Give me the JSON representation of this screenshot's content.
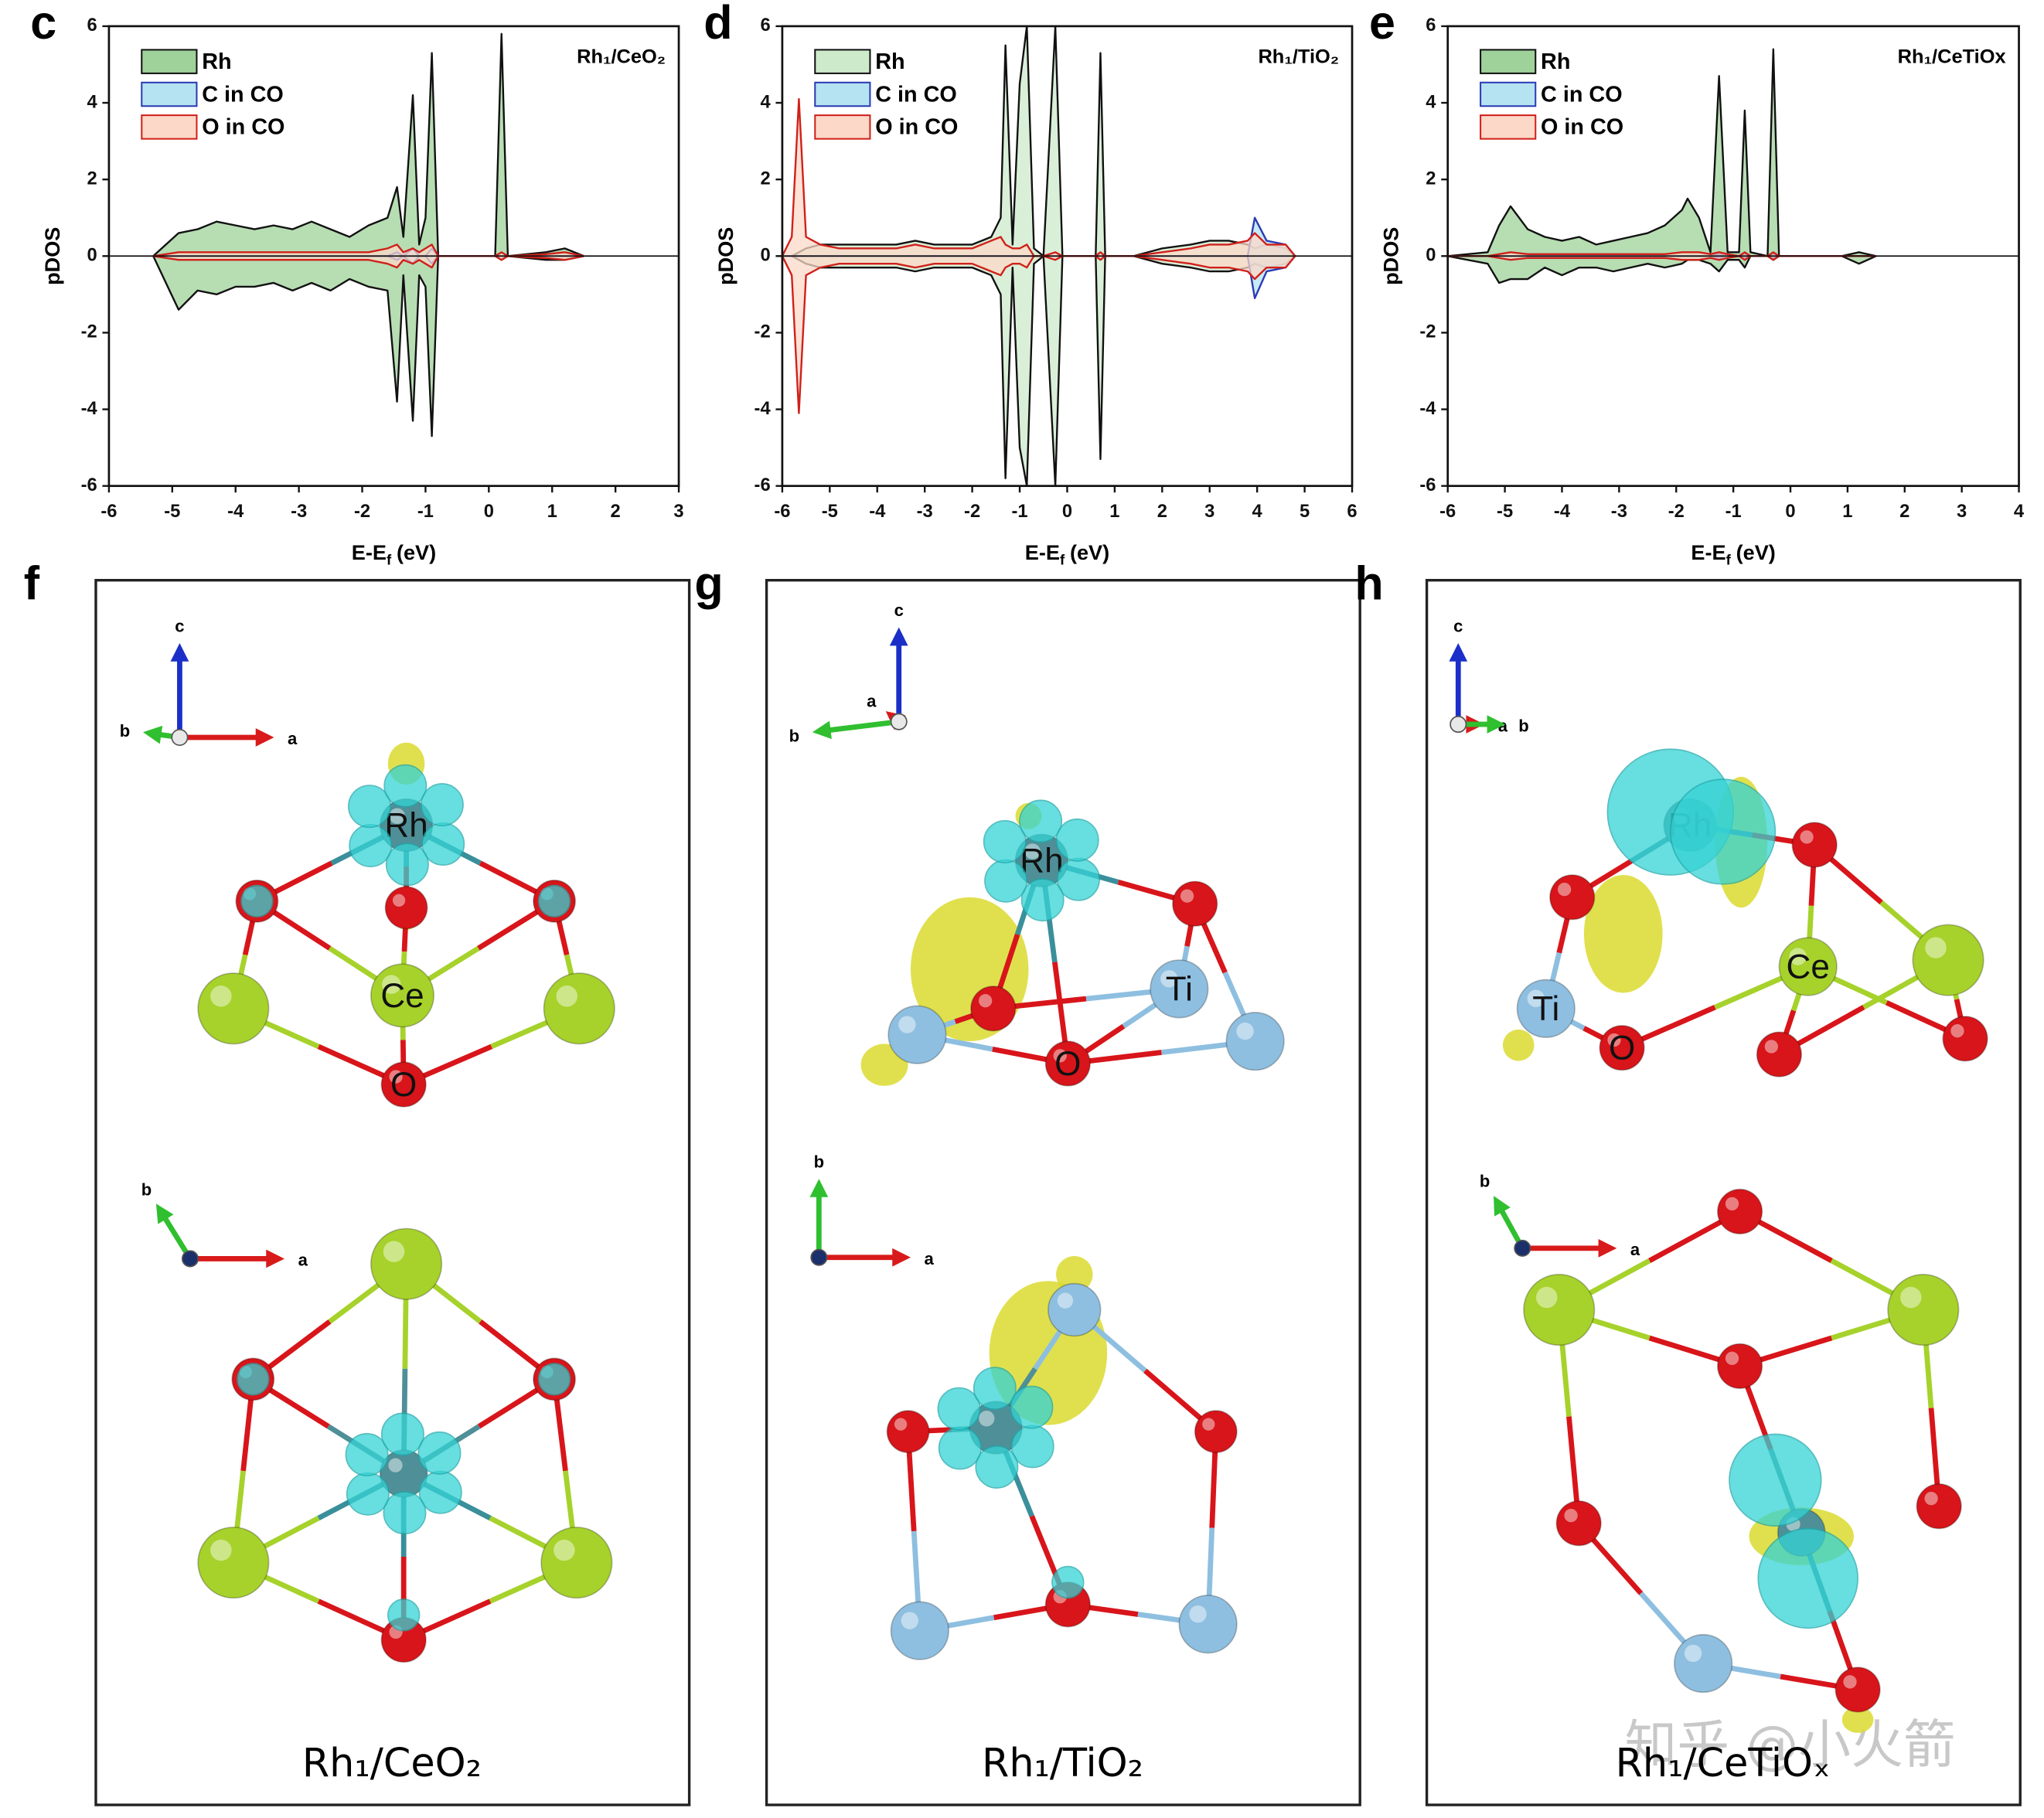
{
  "chart_data": [
    {
      "type": "area",
      "panel_label": "c",
      "title": "Rh₁/CeO₂",
      "y_label": "pDOS",
      "x_label": [
        "E-E",
        "f",
        "(eV)"
      ],
      "xlim": [
        -6,
        3
      ],
      "xticks": [
        -6,
        -5,
        -4,
        -3,
        -2,
        -1,
        0,
        1,
        2,
        3
      ],
      "ylim": [
        -6,
        6
      ],
      "yticks": [
        -6,
        -4,
        -2,
        0,
        2,
        4,
        6
      ],
      "legend": "upper left",
      "x": [
        -5.3,
        -4.9,
        -4.6,
        -4.3,
        -4.0,
        -3.7,
        -3.4,
        -3.1,
        -2.8,
        -2.5,
        -2.2,
        -1.9,
        -1.6,
        -1.45,
        -1.35,
        -1.2,
        -1.1,
        -1.0,
        -0.9,
        -0.8,
        0.1,
        0.2,
        0.3,
        0.9,
        1.2,
        1.5
      ],
      "series": [
        {
          "name": "Rh",
          "color": "#9fd29a",
          "edge": "#111111",
          "values": [
            0,
            0.6,
            0.7,
            0.9,
            0.8,
            0.7,
            0.8,
            0.7,
            0.9,
            0.7,
            0.5,
            0.8,
            1.0,
            1.8,
            0.5,
            4.2,
            0.3,
            1.0,
            5.3,
            0,
            0,
            5.8,
            0,
            0.1,
            0.2,
            0
          ],
          "values_down": [
            0,
            -1.4,
            -0.9,
            -1.0,
            -0.8,
            -0.8,
            -0.7,
            -0.9,
            -0.7,
            -0.9,
            -0.6,
            -0.8,
            -0.9,
            -3.8,
            -0.5,
            -4.3,
            -0.5,
            -0.8,
            -4.7,
            0,
            0,
            -0.1,
            0,
            -0.1,
            -0.1,
            0
          ]
        },
        {
          "name": "C in CO",
          "color": "#b5e3f2",
          "edge": "#2a3bb5",
          "values": [
            0,
            0,
            0,
            0,
            0,
            0,
            0,
            0,
            0,
            0,
            0,
            0,
            0,
            0.1,
            0,
            0.2,
            0,
            0,
            0.2,
            0,
            0,
            0,
            0,
            0,
            0,
            0
          ],
          "values_down": [
            0,
            0,
            0,
            0,
            0,
            0,
            0,
            0,
            0,
            0,
            0,
            0,
            0,
            -0.1,
            0,
            -0.2,
            0,
            0,
            -0.2,
            0,
            0,
            0,
            0,
            0,
            0,
            0
          ]
        },
        {
          "name": "O in CO",
          "color": "#fcd8c8",
          "edge": "#d0201a",
          "values": [
            0,
            0.1,
            0.1,
            0.1,
            0.1,
            0.1,
            0.1,
            0.1,
            0.1,
            0.1,
            0.1,
            0.1,
            0.2,
            0.3,
            0.1,
            0.2,
            0.1,
            0.2,
            0.3,
            0,
            0,
            0.1,
            0,
            0.05,
            0.1,
            0
          ],
          "values_down": [
            0,
            -0.1,
            -0.1,
            -0.1,
            -0.1,
            -0.1,
            -0.1,
            -0.1,
            -0.1,
            -0.1,
            -0.1,
            -0.1,
            -0.2,
            -0.3,
            -0.1,
            -0.2,
            -0.1,
            -0.2,
            -0.3,
            0,
            0,
            -0.1,
            0,
            -0.05,
            -0.1,
            0
          ]
        }
      ]
    },
    {
      "type": "area",
      "panel_label": "d",
      "title": "Rh₁/TiO₂",
      "y_label": "pDOS",
      "x_label": [
        "E-E",
        "f",
        "(eV)"
      ],
      "xlim": [
        -6,
        6
      ],
      "xticks": [
        -6,
        -5,
        -4,
        -3,
        -2,
        -1,
        0,
        1,
        2,
        3,
        4,
        5,
        6
      ],
      "ylim": [
        -6,
        6
      ],
      "yticks": [
        -6,
        -4,
        -2,
        0,
        2,
        4,
        6
      ],
      "legend": "upper left",
      "x": [
        -6,
        -5.8,
        -5.65,
        -5.5,
        -5.2,
        -4.8,
        -4.4,
        -4,
        -3.6,
        -3.2,
        -2.8,
        -2.4,
        -2,
        -1.6,
        -1.4,
        -1.3,
        -1.15,
        -1,
        -0.85,
        -0.7,
        -0.5,
        -0.25,
        -0.1,
        0.2,
        0.6,
        0.7,
        0.8,
        1.4,
        2,
        2.6,
        3,
        3.4,
        3.8,
        3.95,
        4.2,
        4.6,
        4.8
      ],
      "series": [
        {
          "name": "Rh",
          "color": "#cdeacb",
          "edge": "#111111",
          "values": [
            0,
            0,
            0.1,
            0.2,
            0.3,
            0.3,
            0.3,
            0.3,
            0.3,
            0.4,
            0.3,
            0.3,
            0.3,
            0.5,
            1.0,
            5.5,
            0.3,
            4.5,
            6,
            0.2,
            0,
            6,
            0,
            0,
            0,
            5.3,
            0,
            0,
            0.2,
            0.3,
            0.4,
            0.4,
            0.3,
            0.2,
            0.3,
            0.2,
            0
          ],
          "values_down": [
            0,
            0,
            -0.1,
            -0.2,
            -0.3,
            -0.3,
            -0.3,
            -0.3,
            -0.3,
            -0.4,
            -0.3,
            -0.3,
            -0.3,
            -0.5,
            -1.0,
            -5.8,
            -0.3,
            -5.0,
            -6,
            -0.2,
            0,
            -6,
            0,
            0,
            0,
            -5.3,
            0,
            0,
            -0.2,
            -0.3,
            -0.4,
            -0.4,
            -0.3,
            -0.2,
            -0.3,
            -0.2,
            0
          ]
        },
        {
          "name": "C in CO",
          "color": "#b5e3f2",
          "edge": "#2a3bb5",
          "values": [
            0,
            0,
            0,
            0,
            0,
            0,
            0,
            0,
            0,
            0,
            0,
            0,
            0,
            0,
            0,
            0,
            0,
            0,
            0,
            0,
            0,
            0,
            0,
            0,
            0,
            0,
            0,
            0,
            0,
            0,
            0,
            0,
            0,
            1.0,
            0.4,
            0.3,
            0
          ],
          "values_down": [
            0,
            0,
            0,
            0,
            0,
            0,
            0,
            0,
            0,
            0,
            0,
            0,
            0,
            0,
            0,
            0,
            0,
            0,
            0,
            0,
            0,
            0,
            0,
            0,
            0,
            0,
            0,
            0,
            0,
            0,
            0,
            0,
            0,
            -1.1,
            -0.4,
            -0.3,
            0
          ]
        },
        {
          "name": "O in CO",
          "color": "#fcd8c8",
          "edge": "#d0201a",
          "values": [
            0,
            0.5,
            4.1,
            0.5,
            0.3,
            0.2,
            0.2,
            0.2,
            0.2,
            0.3,
            0.2,
            0.2,
            0.2,
            0.4,
            0.5,
            0.3,
            0.2,
            0.2,
            0.3,
            0,
            0,
            0.1,
            0,
            0,
            0,
            0.1,
            0,
            0,
            0.1,
            0.2,
            0.3,
            0.3,
            0.4,
            0.6,
            0.3,
            0.3,
            0
          ],
          "values_down": [
            0,
            -0.5,
            -4.1,
            -0.5,
            -0.3,
            -0.2,
            -0.2,
            -0.2,
            -0.2,
            -0.3,
            -0.2,
            -0.2,
            -0.2,
            -0.4,
            -0.5,
            -0.3,
            -0.2,
            -0.2,
            -0.3,
            0,
            0,
            -0.1,
            0,
            0,
            0,
            -0.1,
            0,
            0,
            -0.1,
            -0.2,
            -0.3,
            -0.3,
            -0.4,
            -0.6,
            -0.3,
            -0.3,
            0
          ]
        }
      ]
    },
    {
      "type": "area",
      "panel_label": "e",
      "title": "Rh₁/CeTiOx",
      "y_label": "pDOS",
      "x_label": [
        "E-E",
        "f",
        "(eV)"
      ],
      "xlim": [
        -6,
        4
      ],
      "xticks": [
        -6,
        -5,
        -4,
        -3,
        -2,
        -1,
        0,
        1,
        2,
        3,
        4
      ],
      "ylim": [
        -6,
        6
      ],
      "yticks": [
        -6,
        -4,
        -2,
        0,
        2,
        4,
        6
      ],
      "legend": "upper left",
      "x": [
        -6,
        -5.3,
        -5.1,
        -4.9,
        -4.6,
        -4.3,
        -4.0,
        -3.7,
        -3.4,
        -3.1,
        -2.8,
        -2.5,
        -2.2,
        -1.9,
        -1.8,
        -1.6,
        -1.4,
        -1.25,
        -1.1,
        -0.9,
        -0.8,
        -0.7,
        -0.4,
        -0.3,
        -0.2,
        0.9,
        1.2,
        1.5
      ],
      "series": [
        {
          "name": "Rh",
          "color": "#9fd29a",
          "edge": "#111111",
          "values": [
            0,
            0.1,
            0.8,
            1.3,
            0.7,
            0.5,
            0.4,
            0.5,
            0.3,
            0.4,
            0.5,
            0.6,
            0.8,
            1.2,
            1.5,
            1.0,
            0.1,
            4.7,
            0.1,
            0.1,
            3.8,
            0.1,
            0,
            5.4,
            0,
            0,
            0.1,
            0
          ],
          "values_down": [
            0,
            -0.2,
            -0.7,
            -0.6,
            -0.6,
            -0.3,
            -0.5,
            -0.3,
            -0.3,
            -0.4,
            -0.3,
            -0.2,
            -0.3,
            -0.2,
            -0.1,
            -0.1,
            -0.2,
            -0.4,
            -0.1,
            -0.1,
            -0.3,
            0,
            0,
            -0.1,
            0,
            0,
            -0.2,
            0
          ]
        },
        {
          "name": "C in CO",
          "color": "#b5e3f2",
          "edge": "#2a3bb5",
          "values": [
            0,
            0,
            0,
            0,
            0,
            0,
            0,
            0,
            0,
            0,
            0,
            0,
            0,
            0,
            0,
            0,
            0,
            0.05,
            0,
            0,
            0.05,
            0,
            0,
            0.05,
            0,
            0,
            0,
            0
          ],
          "values_down": [
            0,
            0,
            0,
            0,
            0,
            0,
            0,
            0,
            0,
            0,
            0,
            0,
            0,
            0,
            0,
            0,
            0,
            -0.05,
            0,
            0,
            -0.05,
            0,
            0,
            -0.05,
            0,
            0,
            0,
            0
          ]
        },
        {
          "name": "O in CO",
          "color": "#fcd8c8",
          "edge": "#d0201a",
          "values": [
            0,
            0,
            0.05,
            0.1,
            0.05,
            0.05,
            0.05,
            0.05,
            0.05,
            0.05,
            0.05,
            0.05,
            0.05,
            0.1,
            0.1,
            0.1,
            0.05,
            0.1,
            0.05,
            0,
            0.1,
            0,
            0,
            0.1,
            0,
            0,
            0,
            0
          ],
          "values_down": [
            0,
            0,
            -0.05,
            -0.1,
            -0.05,
            -0.05,
            -0.05,
            -0.05,
            -0.05,
            -0.05,
            -0.05,
            -0.05,
            -0.05,
            -0.1,
            -0.1,
            -0.1,
            -0.05,
            -0.1,
            -0.05,
            0,
            -0.1,
            0,
            0,
            -0.1,
            0,
            0,
            0,
            0
          ]
        }
      ]
    }
  ],
  "panels": [
    {
      "letter": "f",
      "caption": "Rh₁/CeO₂",
      "atom_labels": [
        "Rh",
        "Ce",
        "O"
      ],
      "axis_labels": [
        [
          "c",
          "b",
          "a"
        ],
        [
          "b",
          "a"
        ]
      ]
    },
    {
      "letter": "g",
      "caption": "Rh₁/TiO₂",
      "atom_labels": [
        "Rh",
        "Ti",
        "O"
      ],
      "axis_labels": [
        [
          "c",
          "a",
          "b"
        ],
        [
          "b",
          "a"
        ]
      ]
    },
    {
      "letter": "h",
      "caption": "Rh₁/CeTiOₓ",
      "atom_labels": [
        "Rh",
        "Ce",
        "Ti",
        "O"
      ],
      "axis_labels": [
        [
          "c",
          "a",
          "b"
        ],
        [
          "b",
          "a"
        ]
      ]
    }
  ],
  "watermark": "知乎 @小火箭"
}
